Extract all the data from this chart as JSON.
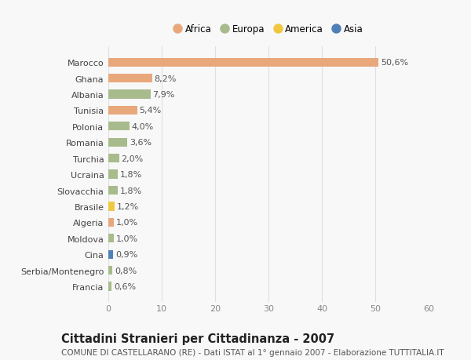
{
  "countries": [
    "Marocco",
    "Ghana",
    "Albania",
    "Tunisia",
    "Polonia",
    "Romania",
    "Turchia",
    "Ucraina",
    "Slovacchia",
    "Brasile",
    "Algeria",
    "Moldova",
    "Cina",
    "Serbia/Montenegro",
    "Francia"
  ],
  "values": [
    50.6,
    8.2,
    7.9,
    5.4,
    4.0,
    3.6,
    2.0,
    1.8,
    1.8,
    1.2,
    1.0,
    1.0,
    0.9,
    0.8,
    0.6
  ],
  "labels": [
    "50,6%",
    "8,2%",
    "7,9%",
    "5,4%",
    "4,0%",
    "3,6%",
    "2,0%",
    "1,8%",
    "1,8%",
    "1,2%",
    "1,0%",
    "1,0%",
    "0,9%",
    "0,8%",
    "0,6%"
  ],
  "continents": [
    "Africa",
    "Africa",
    "Europa",
    "Africa",
    "Europa",
    "Europa",
    "Europa",
    "Europa",
    "Europa",
    "America",
    "Africa",
    "Europa",
    "Asia",
    "Europa",
    "Europa"
  ],
  "continent_colors": {
    "Africa": "#E8A87C",
    "Europa": "#A8BB8C",
    "America": "#F0C840",
    "Asia": "#5080B8"
  },
  "legend_order": [
    "Africa",
    "Europa",
    "America",
    "Asia"
  ],
  "title": "Cittadini Stranieri per Cittadinanza - 2007",
  "subtitle": "COMUNE DI CASTELLARANO (RE) - Dati ISTAT al 1° gennaio 2007 - Elaborazione TUTTITALIA.IT",
  "xlim": [
    0,
    60
  ],
  "xticks": [
    0,
    10,
    20,
    30,
    40,
    50,
    60
  ],
  "background_color": "#f8f8f8",
  "grid_color": "#e0e0e0",
  "bar_height": 0.55,
  "title_fontsize": 10.5,
  "subtitle_fontsize": 7.5,
  "tick_fontsize": 8,
  "label_fontsize": 8,
  "legend_fontsize": 8.5
}
